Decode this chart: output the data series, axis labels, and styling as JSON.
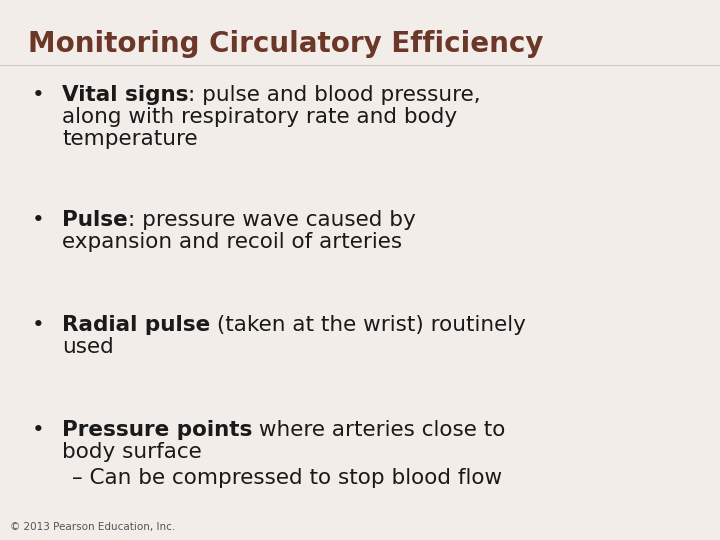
{
  "title": "Monitoring Circulatory Efficiency",
  "title_color": "#6B3728",
  "title_fontsize": 20,
  "background_color": "#F2EDE8",
  "text_color": "#1a1a1a",
  "bullet_items": [
    {
      "bold_part": "Vital signs",
      "normal_part": ": pulse and blood pressure,\nalong with respiratory rate and body\ntemperature"
    },
    {
      "bold_part": "Pulse",
      "normal_part": ": pressure wave caused by\nexpansion and recoil of arteries"
    },
    {
      "bold_part": "Radial pulse",
      "normal_part": " (taken at the wrist) routinely\nused"
    },
    {
      "bold_part": "Pressure points",
      "normal_part": " where arteries close to\nbody surface"
    }
  ],
  "sub_bullet": "– Can be compressed to stop blood flow",
  "footer": "© 2013 Pearson Education, Inc.",
  "footer_fontsize": 7.5,
  "bullet_fontsize": 15.5,
  "bullet_symbol": "•"
}
